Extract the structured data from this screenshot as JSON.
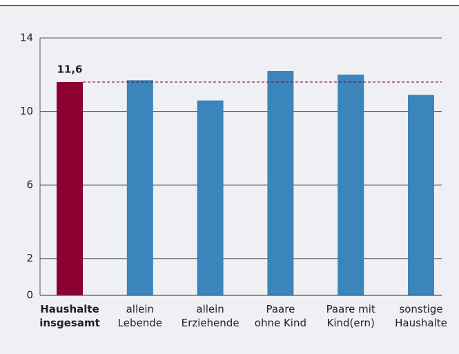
{
  "chart_data": {
    "type": "bar",
    "categories": [
      [
        "Haushalte",
        "insgesamt"
      ],
      [
        "allein",
        "Lebende"
      ],
      [
        "allein",
        "Erziehende"
      ],
      [
        "Paare",
        "ohne Kind"
      ],
      [
        "Paare mit",
        "Kind(ern)"
      ],
      [
        "sonstige",
        "Haushalte"
      ]
    ],
    "values": [
      11.6,
      11.7,
      10.6,
      12.2,
      12.0,
      10.9
    ],
    "value_labels": [
      "11,6",
      null,
      null,
      null,
      null,
      null
    ],
    "colors": [
      "#8a0030",
      "#3a85bb",
      "#3a85bb",
      "#3a85bb",
      "#3a85bb",
      "#3a85bb"
    ],
    "reference_line_color": "#8a0030",
    "ylim": [
      0,
      14
    ],
    "yticks": [
      0,
      2,
      6,
      10,
      14
    ],
    "grid": true
  }
}
